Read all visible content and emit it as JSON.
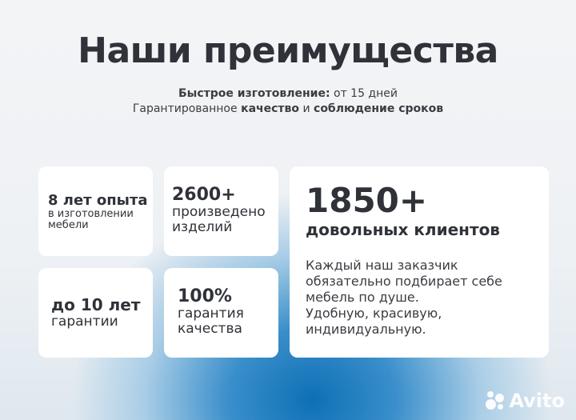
{
  "title": "Наши преимущества",
  "subtitle": {
    "line1_bold": "Быстрое изготовление:",
    "line1_rest": " от 15 дней",
    "line2_a": "Гарантированное ",
    "line2_b": "качество",
    "line2_c": " и ",
    "line2_d": "соблюдение сроков"
  },
  "cards": [
    {
      "headline": "8 лет опыта",
      "lines": [
        "в изготовлении",
        "мебели"
      ]
    },
    {
      "headline": "2600+",
      "lines": [
        "произведено",
        "изделий"
      ]
    },
    {
      "headline": "до 10 лет",
      "lines": [
        "гарантии"
      ]
    },
    {
      "headline": "100%",
      "lines": [
        "гарантия",
        "качества"
      ]
    }
  ],
  "feature": {
    "headline": "1850+",
    "label": "довольных клиентов",
    "text": [
      "Каждый наш заказчик",
      "обязательно подбирает себе",
      "мебель по душе.",
      "Удобную, красивую,",
      "индивидуальную."
    ]
  },
  "watermark": "Avito"
}
